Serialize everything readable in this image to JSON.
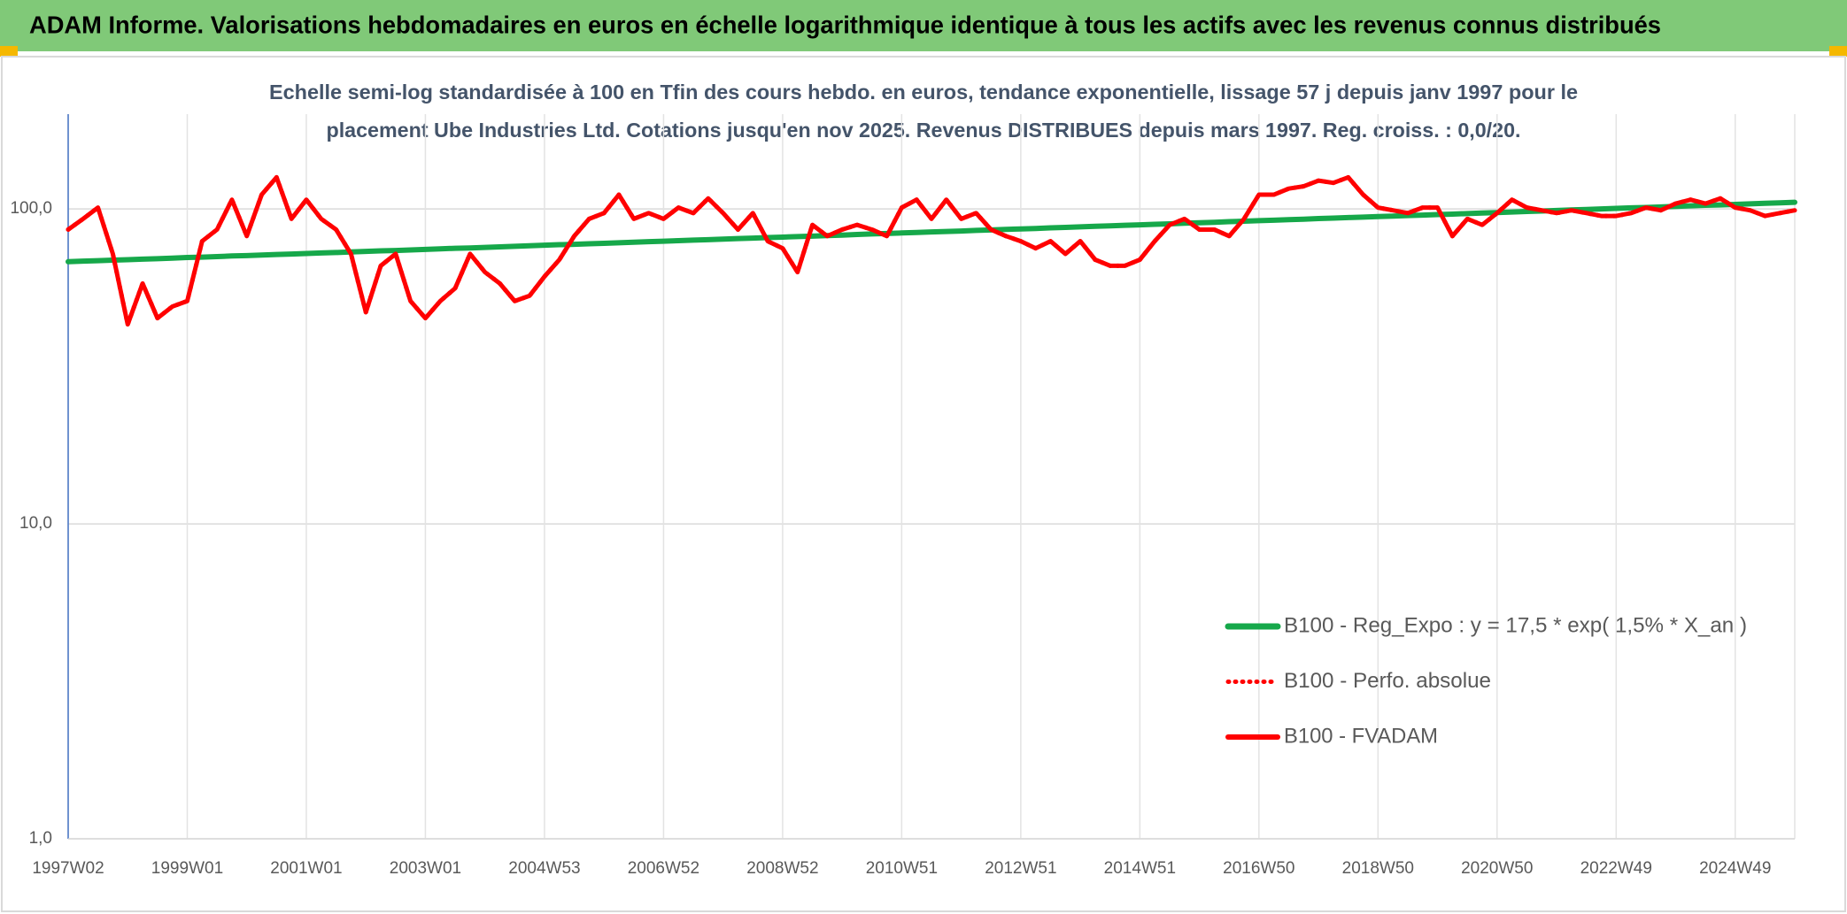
{
  "chart_data": {
    "type": "line",
    "title": "ADAM Informe. Valorisations hebdomadaires en euros en échelle logarithmique identique à tous les actifs avec les revenus connus distribués",
    "subtitle": [
      "Echelle semi-log standardisée à 100 en Tfin des cours hebdo. en euros, tendance exponentielle, lissage 57 j depuis janv 1997 pour le",
      "placement Ube Industries Ltd. Cotations jusqu'en nov 2025. Revenus DISTRIBUES depuis mars 1997. Reg. croiss. : 0,0/20."
    ],
    "log_scale": true,
    "grid": true,
    "legend": "right",
    "ylim": [
      1,
      200
    ],
    "yticks": [
      {
        "value": 1,
        "label": "1,0"
      },
      {
        "value": 10,
        "label": "10,0"
      },
      {
        "value": 100,
        "label": "100,0"
      }
    ],
    "categories": [
      "1997W02",
      null,
      null,
      null,
      null,
      null,
      null,
      null,
      "1999W01",
      null,
      null,
      null,
      null,
      null,
      null,
      null,
      "2001W01",
      null,
      null,
      null,
      null,
      null,
      null,
      null,
      "2003W01",
      null,
      null,
      null,
      null,
      null,
      null,
      null,
      "2004W53",
      null,
      null,
      null,
      null,
      null,
      null,
      null,
      "2006W52",
      null,
      null,
      null,
      null,
      null,
      null,
      null,
      "2008W52",
      null,
      null,
      null,
      null,
      null,
      null,
      null,
      "2010W51",
      null,
      null,
      null,
      null,
      null,
      null,
      null,
      "2012W51",
      null,
      null,
      null,
      null,
      null,
      null,
      null,
      "2014W51",
      null,
      null,
      null,
      null,
      null,
      null,
      null,
      "2016W50",
      null,
      null,
      null,
      null,
      null,
      null,
      null,
      "2018W50",
      null,
      null,
      null,
      null,
      null,
      null,
      null,
      "2020W50",
      null,
      null,
      null,
      null,
      null,
      null,
      null,
      "2022W49",
      null,
      null,
      null,
      null,
      null,
      null,
      null,
      "2024W49",
      null,
      null,
      null,
      null
    ],
    "series": [
      {
        "name": "B100 - Reg_Expo : y = 17,5 * exp( 1,5% *  X_an )",
        "color": "#16a84a",
        "style": "solid",
        "width": 6,
        "values": [
          68.0,
          68.3,
          68.5,
          68.8,
          69.0,
          69.3,
          69.5,
          69.8,
          70.1,
          70.3,
          70.6,
          70.9,
          71.1,
          71.4,
          71.7,
          71.9,
          72.2,
          72.5,
          72.7,
          73.0,
          73.3,
          73.6,
          73.8,
          74.1,
          74.4,
          74.7,
          75.0,
          75.2,
          75.5,
          75.8,
          76.1,
          76.4,
          76.7,
          77.0,
          77.2,
          77.5,
          77.8,
          78.1,
          78.4,
          78.7,
          79.0,
          79.3,
          79.6,
          79.9,
          80.2,
          80.5,
          80.8,
          81.1,
          81.4,
          81.7,
          82.0,
          82.3,
          82.6,
          83.0,
          83.3,
          83.6,
          83.9,
          84.2,
          84.5,
          84.8,
          85.1,
          85.5,
          85.8,
          86.1,
          86.4,
          86.7,
          87.1,
          87.4,
          87.7,
          88.1,
          88.4,
          88.7,
          89.0,
          89.4,
          89.7,
          90.1,
          90.4,
          90.7,
          91.1,
          91.4,
          91.8,
          92.1,
          92.5,
          92.8,
          93.2,
          93.5,
          93.9,
          94.2,
          94.6,
          94.9,
          95.3,
          95.6,
          96.0,
          96.3,
          96.7,
          97.1,
          97.4,
          97.8,
          98.2,
          98.5,
          98.9,
          99.3,
          99.6,
          100.0,
          100.4,
          100.8,
          101.1,
          101.5,
          101.9,
          102.3,
          102.7,
          103.0,
          103.4,
          103.8,
          104.2,
          104.6,
          105.0
        ]
      },
      {
        "name": "B100 - Perfo. absolue",
        "color": "#ff0000",
        "style": "dotted",
        "width": 5,
        "values": [
          86,
          93,
          101,
          72,
          43,
          58,
          45,
          49,
          51,
          79,
          86,
          107,
          82,
          111,
          126,
          93,
          107,
          93,
          86,
          72,
          47,
          66,
          72,
          51,
          45,
          51,
          56,
          72,
          63,
          58,
          51,
          53,
          61,
          69,
          82,
          93,
          97,
          111,
          93,
          97,
          93,
          101,
          97,
          108,
          97,
          86,
          97,
          79,
          75,
          63,
          89,
          82,
          86,
          89,
          86,
          82,
          101,
          107,
          93,
          107,
          93,
          97,
          86,
          82,
          79,
          75,
          79,
          72,
          79,
          69,
          66,
          66,
          69,
          79,
          89,
          93,
          86,
          86,
          82,
          93,
          111,
          111,
          116,
          118,
          123,
          121,
          126,
          111,
          101,
          99,
          97,
          101,
          101,
          82,
          93,
          89,
          97,
          107,
          101,
          99,
          97,
          99,
          97,
          95,
          95,
          97,
          101,
          99,
          104,
          107,
          104,
          108,
          101,
          99,
          95,
          97,
          99
        ]
      },
      {
        "name": "B100 - FVADAM",
        "color": "#ff0000",
        "style": "solid",
        "width": 5,
        "values": [
          86,
          93,
          101,
          72,
          43,
          58,
          45,
          49,
          51,
          79,
          86,
          107,
          82,
          111,
          126,
          93,
          107,
          93,
          86,
          72,
          47,
          66,
          72,
          51,
          45,
          51,
          56,
          72,
          63,
          58,
          51,
          53,
          61,
          69,
          82,
          93,
          97,
          111,
          93,
          97,
          93,
          101,
          97,
          108,
          97,
          86,
          97,
          79,
          75,
          63,
          89,
          82,
          86,
          89,
          86,
          82,
          101,
          107,
          93,
          107,
          93,
          97,
          86,
          82,
          79,
          75,
          79,
          72,
          79,
          69,
          66,
          66,
          69,
          79,
          89,
          93,
          86,
          86,
          82,
          93,
          111,
          111,
          116,
          118,
          123,
          121,
          126,
          111,
          101,
          99,
          97,
          101,
          101,
          82,
          93,
          89,
          97,
          107,
          101,
          99,
          97,
          99,
          97,
          95,
          95,
          97,
          101,
          99,
          104,
          107,
          104,
          108,
          101,
          99,
          95,
          97,
          99
        ]
      }
    ]
  }
}
